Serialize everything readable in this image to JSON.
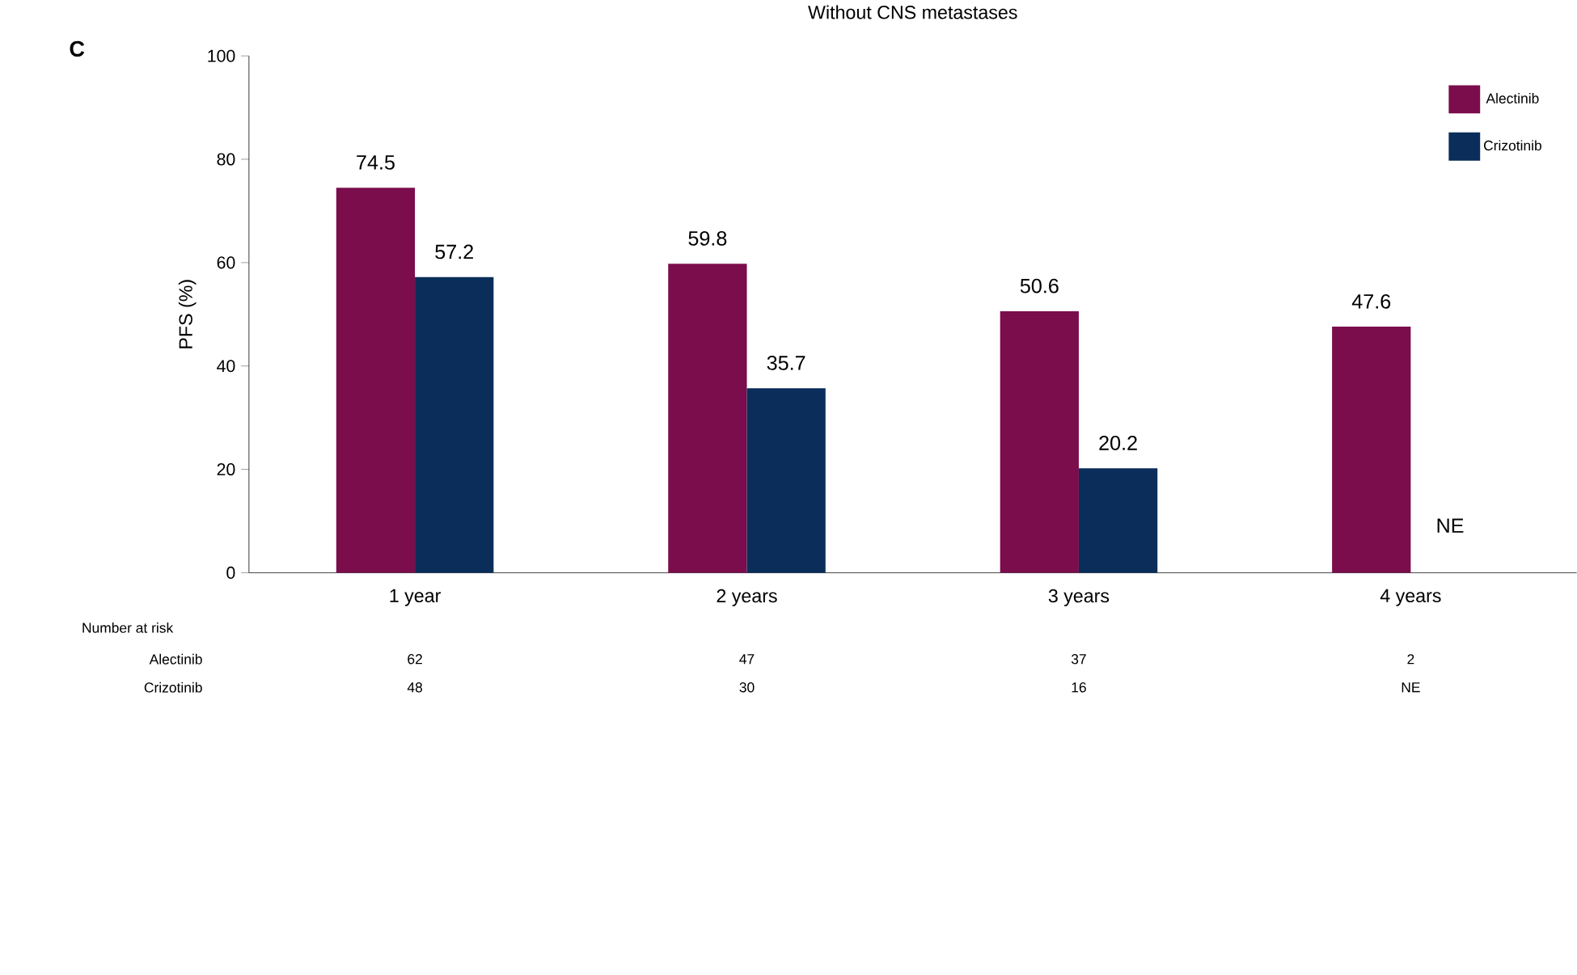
{
  "chart_data": {
    "type": "bar",
    "title": "Without CNS metastases",
    "ylabel": "PFS (%)",
    "categories": [
      "1 year",
      "2 years",
      "3 years",
      "4 years"
    ],
    "series": [
      {
        "name": "Alectinib",
        "color": "#7b0d4c",
        "values": [
          74.5,
          59.8,
          50.6,
          47.6
        ],
        "value_labels": [
          "74.5",
          "59.8",
          "50.6",
          "47.6"
        ]
      },
      {
        "name": "Crizotinib",
        "color": "#0a2d5a",
        "values": [
          57.2,
          35.7,
          20.2,
          null
        ],
        "value_labels": [
          "57.2",
          "35.7",
          "20.2",
          "NE"
        ]
      }
    ],
    "ylim": [
      0,
      100
    ],
    "yticks": [
      0,
      20,
      40,
      60,
      80,
      100
    ],
    "grid": false,
    "legend": "top right",
    "annotations": [
      "C",
      "Number at risk",
      "Alectinib",
      "62",
      "47",
      "37",
      "2",
      "Crizotinib",
      "48",
      "30",
      "16",
      "NE"
    ]
  }
}
